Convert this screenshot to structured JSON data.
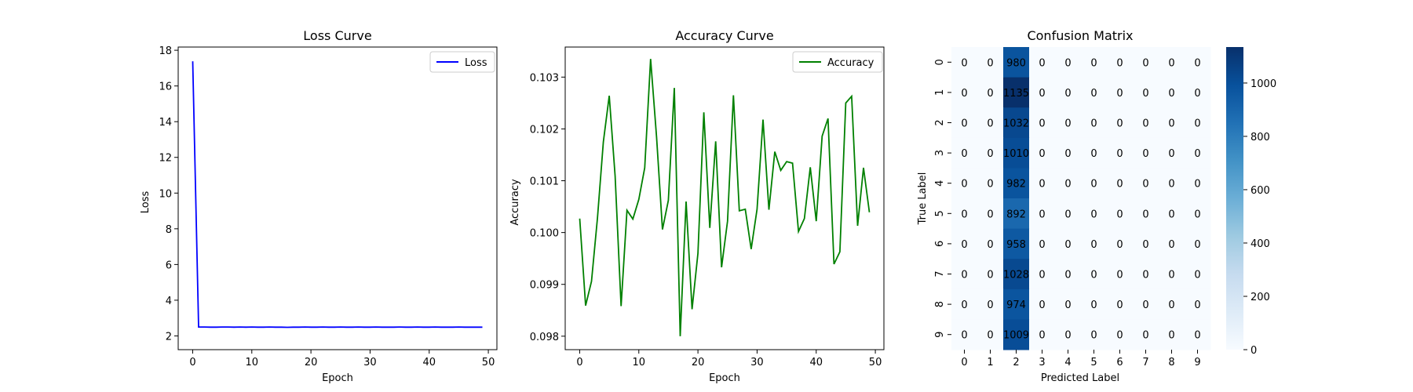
{
  "chart_data": [
    {
      "type": "line",
      "title": "Loss Curve",
      "xlabel": "Epoch",
      "ylabel": "Loss",
      "xlim": [
        -2.45,
        51.45
      ],
      "ylim": [
        1.23,
        18.18
      ],
      "xticks": [
        0,
        10,
        20,
        30,
        40,
        50
      ],
      "yticks": [
        2,
        4,
        6,
        8,
        10,
        12,
        14,
        16,
        18
      ],
      "legend": "top-right",
      "color": "#0000ff",
      "series": [
        {
          "name": "Loss",
          "x": [
            0,
            1,
            2,
            3,
            4,
            5,
            6,
            7,
            8,
            9,
            10,
            11,
            12,
            13,
            14,
            15,
            16,
            17,
            18,
            19,
            20,
            21,
            22,
            23,
            24,
            25,
            26,
            27,
            28,
            29,
            30,
            31,
            32,
            33,
            34,
            35,
            36,
            37,
            38,
            39,
            40,
            41,
            42,
            43,
            44,
            45,
            46,
            47,
            48,
            49
          ],
          "values": [
            17.38,
            2.5,
            2.5,
            2.49,
            2.49,
            2.5,
            2.5,
            2.49,
            2.5,
            2.49,
            2.5,
            2.49,
            2.49,
            2.5,
            2.49,
            2.49,
            2.48,
            2.49,
            2.49,
            2.5,
            2.49,
            2.49,
            2.5,
            2.49,
            2.49,
            2.5,
            2.49,
            2.49,
            2.5,
            2.49,
            2.49,
            2.5,
            2.49,
            2.49,
            2.49,
            2.5,
            2.49,
            2.49,
            2.5,
            2.49,
            2.49,
            2.5,
            2.49,
            2.49,
            2.49,
            2.5,
            2.49,
            2.49,
            2.49,
            2.49
          ]
        }
      ]
    },
    {
      "type": "line",
      "title": "Accuracy Curve",
      "xlabel": "Epoch",
      "ylabel": "Accuracy",
      "xlim": [
        -2.45,
        51.45
      ],
      "ylim": [
        0.09774,
        0.10358
      ],
      "xticks": [
        0,
        10,
        20,
        30,
        40,
        50
      ],
      "yticks": [
        0.098,
        0.099,
        0.1,
        0.101,
        0.102,
        0.103
      ],
      "ytick_labels": [
        "0.098",
        "0.099",
        "0.100",
        "0.101",
        "0.102",
        "0.103"
      ],
      "legend": "top-right",
      "color": "#008000",
      "series": [
        {
          "name": "Accuracy",
          "x": [
            0,
            1,
            2,
            3,
            4,
            5,
            6,
            7,
            8,
            9,
            10,
            11,
            12,
            13,
            14,
            15,
            16,
            17,
            18,
            19,
            20,
            21,
            22,
            23,
            24,
            25,
            26,
            27,
            28,
            29,
            30,
            31,
            32,
            33,
            34,
            35,
            36,
            37,
            38,
            39,
            40,
            41,
            42,
            43,
            44,
            45,
            46,
            47,
            48,
            49
          ],
          "values": [
            0.10027,
            0.09859,
            0.09906,
            0.10028,
            0.10175,
            0.10264,
            0.10109,
            0.09858,
            0.10043,
            0.10026,
            0.10064,
            0.10125,
            0.10335,
            0.10184,
            0.10006,
            0.10062,
            0.10279,
            0.098,
            0.1006,
            0.09852,
            0.0996,
            0.10232,
            0.10009,
            0.10176,
            0.09933,
            0.10022,
            0.10265,
            0.10042,
            0.10045,
            0.09968,
            0.10045,
            0.10218,
            0.10044,
            0.10156,
            0.1012,
            0.10137,
            0.10134,
            0.10002,
            0.10027,
            0.10126,
            0.10022,
            0.10186,
            0.1022,
            0.09939,
            0.09963,
            0.1025,
            0.10263,
            0.10013,
            0.10125,
            0.10039
          ]
        }
      ]
    },
    {
      "type": "heatmap",
      "title": "Confusion Matrix",
      "xlabel": "Predicted Label",
      "ylabel": "True Label",
      "x_categories": [
        "0",
        "1",
        "2",
        "3",
        "4",
        "5",
        "6",
        "7",
        "8",
        "9"
      ],
      "y_categories": [
        "0",
        "1",
        "2",
        "3",
        "4",
        "5",
        "6",
        "7",
        "8",
        "9"
      ],
      "colormap": "Blues",
      "vmin": 0,
      "vmax": 1135,
      "colorbar_ticks": [
        0,
        200,
        400,
        600,
        800,
        1000
      ],
      "matrix": [
        [
          0,
          0,
          980,
          0,
          0,
          0,
          0,
          0,
          0,
          0
        ],
        [
          0,
          0,
          1135,
          0,
          0,
          0,
          0,
          0,
          0,
          0
        ],
        [
          0,
          0,
          1032,
          0,
          0,
          0,
          0,
          0,
          0,
          0
        ],
        [
          0,
          0,
          1010,
          0,
          0,
          0,
          0,
          0,
          0,
          0
        ],
        [
          0,
          0,
          982,
          0,
          0,
          0,
          0,
          0,
          0,
          0
        ],
        [
          0,
          0,
          892,
          0,
          0,
          0,
          0,
          0,
          0,
          0
        ],
        [
          0,
          0,
          958,
          0,
          0,
          0,
          0,
          0,
          0,
          0
        ],
        [
          0,
          0,
          1028,
          0,
          0,
          0,
          0,
          0,
          0,
          0
        ],
        [
          0,
          0,
          974,
          0,
          0,
          0,
          0,
          0,
          0,
          0
        ],
        [
          0,
          0,
          1009,
          0,
          0,
          0,
          0,
          0,
          0,
          0
        ]
      ]
    }
  ]
}
